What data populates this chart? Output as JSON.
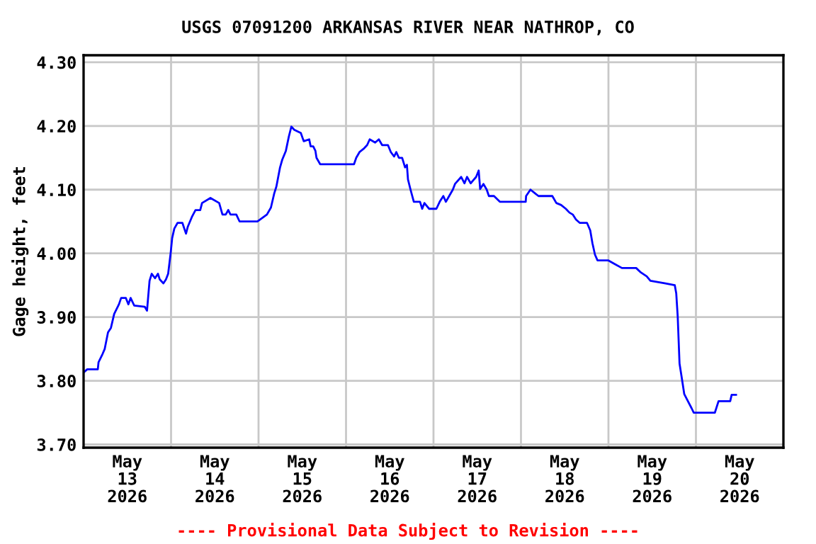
{
  "chart_data": {
    "type": "line",
    "title": "USGS 07091200 ARKANSAS RIVER NEAR NATHROP, CO",
    "ylabel": "Gage height, feet",
    "annotations": [
      "---- Provisional Data Subject to Revision ----"
    ],
    "xlim": [
      "2026-05-13T00:00",
      "2026-05-21T00:00"
    ],
    "xticks": [
      {
        "value": "2026-05-13T12:00",
        "label": "May\n13\n2026"
      },
      {
        "value": "2026-05-14T00:00",
        "label": null
      },
      {
        "value": "2026-05-14T12:00",
        "label": "May\n14\n2026"
      },
      {
        "value": "2026-05-15T00:00",
        "label": null
      },
      {
        "value": "2026-05-15T12:00",
        "label": "May\n15\n2026"
      },
      {
        "value": "2026-05-16T00:00",
        "label": null
      },
      {
        "value": "2026-05-16T12:00",
        "label": "May\n16\n2026"
      },
      {
        "value": "2026-05-17T00:00",
        "label": null
      },
      {
        "value": "2026-05-17T12:00",
        "label": "May\n17\n2026"
      },
      {
        "value": "2026-05-18T00:00",
        "label": null
      },
      {
        "value": "2026-05-18T12:00",
        "label": "May\n18\n2026"
      },
      {
        "value": "2026-05-19T00:00",
        "label": null
      },
      {
        "value": "2026-05-19T12:00",
        "label": "May\n19\n2026"
      },
      {
        "value": "2026-05-20T00:00",
        "label": null
      },
      {
        "value": "2026-05-20T12:00",
        "label": "May\n20\n2026"
      }
    ],
    "ylim": [
      3.695,
      4.311
    ],
    "yticks": [
      {
        "value": 3.7,
        "label": "3.70"
      },
      {
        "value": 3.8,
        "label": "3.80"
      },
      {
        "value": 3.9,
        "label": "3.90"
      },
      {
        "value": 4.0,
        "label": "4.00"
      },
      {
        "value": 4.1,
        "label": "4.10"
      },
      {
        "value": 4.2,
        "label": "4.20"
      },
      {
        "value": 4.3,
        "label": "4.30"
      }
    ],
    "grid": true,
    "line_style": "solid",
    "series": [
      {
        "color": "#0000ff",
        "x": [
          "2026-05-13T00:00",
          "2026-05-13T01:00",
          "2026-05-13T03:54",
          "2026-05-13T04:06",
          "2026-05-13T05:12",
          "2026-05-13T05:48",
          "2026-05-13T06:42",
          "2026-05-13T07:30",
          "2026-05-13T08:24",
          "2026-05-13T09:42",
          "2026-05-13T10:18",
          "2026-05-13T11:36",
          "2026-05-13T12:18",
          "2026-05-13T12:54",
          "2026-05-13T13:54",
          "2026-05-13T16:48",
          "2026-05-13T17:24",
          "2026-05-13T18:06",
          "2026-05-13T18:42",
          "2026-05-13T19:36",
          "2026-05-13T20:24",
          "2026-05-13T20:54",
          "2026-05-13T21:54",
          "2026-05-13T22:36",
          "2026-05-13T23:12",
          "2026-05-13T23:54",
          "2026-05-14T00:18",
          "2026-05-14T00:54",
          "2026-05-14T01:48",
          "2026-05-14T03:06",
          "2026-05-14T04:06",
          "2026-05-14T04:36",
          "2026-05-14T05:42",
          "2026-05-14T06:42",
          "2026-05-14T08:00",
          "2026-05-14T08:30",
          "2026-05-14T10:48",
          "2026-05-14T13:12",
          "2026-05-14T14:06",
          "2026-05-14T15:00",
          "2026-05-14T15:42",
          "2026-05-14T16:18",
          "2026-05-14T17:54",
          "2026-05-14T18:48",
          "2026-05-14T23:42",
          "2026-05-15T02:18",
          "2026-05-15T03:24",
          "2026-05-15T04:18",
          "2026-05-15T04:54",
          "2026-05-15T05:54",
          "2026-05-15T06:30",
          "2026-05-15T07:30",
          "2026-05-15T08:18",
          "2026-05-15T09:00",
          "2026-05-15T09:48",
          "2026-05-15T11:36",
          "2026-05-15T12:24",
          "2026-05-15T13:54",
          "2026-05-15T14:18",
          "2026-05-15T15:00",
          "2026-05-15T15:36",
          "2026-05-15T15:54",
          "2026-05-15T16:54",
          "2026-05-16T02:12",
          "2026-05-16T02:48",
          "2026-05-16T03:42",
          "2026-05-16T04:48",
          "2026-05-16T05:48",
          "2026-05-16T06:30",
          "2026-05-16T08:00",
          "2026-05-16T09:00",
          "2026-05-16T09:54",
          "2026-05-16T11:30",
          "2026-05-16T12:18",
          "2026-05-16T13:12",
          "2026-05-16T13:48",
          "2026-05-16T14:30",
          "2026-05-16T15:24",
          "2026-05-16T16:12",
          "2026-05-16T16:42",
          "2026-05-16T17:00",
          "2026-05-16T17:42",
          "2026-05-16T18:36",
          "2026-05-16T20:18",
          "2026-05-16T20:54",
          "2026-05-16T21:30",
          "2026-05-16T22:48",
          "2026-05-17T00:48",
          "2026-05-17T01:42",
          "2026-05-17T02:42",
          "2026-05-17T03:24",
          "2026-05-17T04:18",
          "2026-05-17T05:18",
          "2026-05-17T05:54",
          "2026-05-17T07:36",
          "2026-05-17T08:30",
          "2026-05-17T09:12",
          "2026-05-17T10:12",
          "2026-05-17T11:42",
          "2026-05-17T12:24",
          "2026-05-17T12:48",
          "2026-05-17T13:42",
          "2026-05-17T14:36",
          "2026-05-17T15:12",
          "2026-05-17T16:36",
          "2026-05-17T18:12",
          "2026-05-18T01:18",
          "2026-05-18T01:24",
          "2026-05-18T02:36",
          "2026-05-18T03:54",
          "2026-05-18T04:48",
          "2026-05-18T08:36",
          "2026-05-18T09:42",
          "2026-05-18T11:00",
          "2026-05-18T12:18",
          "2026-05-18T13:18",
          "2026-05-18T14:12",
          "2026-05-18T15:06",
          "2026-05-18T16:06",
          "2026-05-18T18:06",
          "2026-05-18T19:00",
          "2026-05-18T19:36",
          "2026-05-18T20:18",
          "2026-05-18T21:00",
          "2026-05-18T23:54",
          "2026-05-19T01:48",
          "2026-05-19T03:42",
          "2026-05-19T07:36",
          "2026-05-19T08:54",
          "2026-05-19T10:30",
          "2026-05-19T11:30",
          "2026-05-19T15:24",
          "2026-05-19T18:12",
          "2026-05-19T18:36",
          "2026-05-19T19:00",
          "2026-05-19T19:30",
          "2026-05-19T20:06",
          "2026-05-19T20:48",
          "2026-05-19T21:48",
          "2026-05-19T22:48",
          "2026-05-19T23:24",
          "2026-05-20T05:12",
          "2026-05-20T06:12",
          "2026-05-20T09:24",
          "2026-05-20T09:48",
          "2026-05-20T11:00"
        ],
        "values": [
          3.813,
          3.818,
          3.818,
          3.829,
          3.842,
          3.85,
          3.876,
          3.883,
          3.905,
          3.92,
          3.93,
          3.93,
          3.92,
          3.93,
          3.918,
          3.916,
          3.91,
          3.957,
          3.968,
          3.961,
          3.968,
          3.959,
          3.953,
          3.959,
          3.968,
          4.001,
          4.024,
          4.039,
          4.048,
          4.048,
          4.031,
          4.042,
          4.057,
          4.068,
          4.068,
          4.079,
          4.087,
          4.079,
          4.061,
          4.061,
          4.068,
          4.061,
          4.061,
          4.05,
          4.05,
          4.061,
          4.072,
          4.094,
          4.105,
          4.135,
          4.147,
          4.161,
          4.183,
          4.199,
          4.194,
          4.189,
          4.176,
          4.179,
          4.168,
          4.168,
          4.161,
          4.15,
          4.14,
          4.14,
          4.15,
          4.159,
          4.164,
          4.17,
          4.179,
          4.174,
          4.179,
          4.17,
          4.17,
          4.159,
          4.152,
          4.159,
          4.15,
          4.15,
          4.135,
          4.139,
          4.116,
          4.1,
          4.081,
          4.081,
          4.07,
          4.079,
          4.07,
          4.07,
          4.081,
          4.09,
          4.081,
          4.09,
          4.1,
          4.109,
          4.12,
          4.11,
          4.12,
          4.11,
          4.12,
          4.13,
          4.101,
          4.109,
          4.1,
          4.09,
          4.09,
          4.081,
          4.081,
          4.09,
          4.1,
          4.094,
          4.09,
          4.09,
          4.079,
          4.076,
          4.07,
          4.064,
          4.061,
          4.053,
          4.048,
          4.048,
          4.036,
          4.016,
          3.998,
          3.989,
          3.989,
          3.983,
          3.977,
          3.977,
          3.97,
          3.964,
          3.957,
          3.953,
          3.95,
          3.937,
          3.901,
          3.827,
          3.805,
          3.779,
          3.768,
          3.757,
          3.75,
          3.75,
          3.768,
          3.768,
          3.778,
          3.778
        ]
      }
    ]
  }
}
